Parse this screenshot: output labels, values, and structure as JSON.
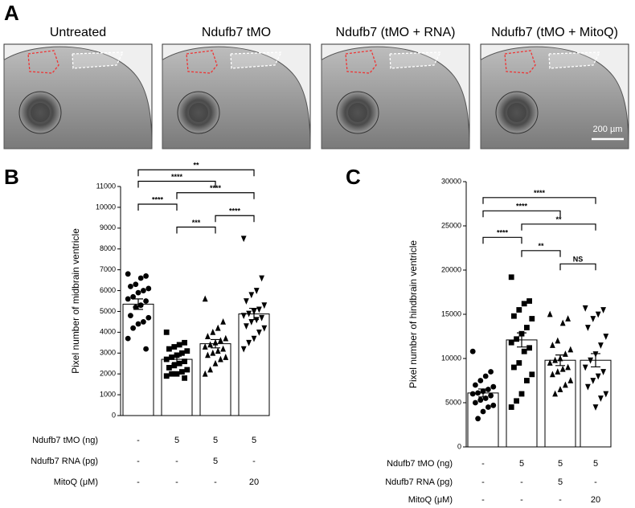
{
  "figure": {
    "label": "A",
    "titles": [
      "Untreated",
      "Ndufb7 tMO",
      "Ndufb7 (tMO + RNA)",
      "Ndufb7 (tMO + MitoQ)"
    ],
    "scale_bar": "200 µm"
  },
  "chart_data": [
    {
      "type": "bar",
      "label": "B",
      "ylabel": "Pixel number of midbrain ventricle",
      "ylim": [
        0,
        11000
      ],
      "yticks": [
        0,
        1000,
        2000,
        3000,
        4000,
        5000,
        6000,
        7000,
        8000,
        9000,
        10000,
        11000
      ],
      "values": [
        5350,
        2700,
        3450,
        4880
      ],
      "errors": [
        250,
        150,
        200,
        270
      ],
      "color": "#ffffff",
      "markers": [
        "circle",
        "square",
        "triangle",
        "triangle-down"
      ],
      "points": [
        [
          6800,
          6700,
          6600,
          6300,
          6200,
          6100,
          6000,
          5900,
          5700,
          5600,
          5500,
          5300,
          5200,
          4800,
          4700,
          4500,
          4400,
          4200,
          3700,
          3200
        ],
        [
          4000,
          3500,
          3400,
          3300,
          3200,
          3100,
          3000,
          2900,
          2800,
          2700,
          2600,
          2500,
          2400,
          2300,
          2200,
          2100,
          2000,
          2000,
          1900,
          1800
        ],
        [
          5600,
          4500,
          4200,
          4000,
          3800,
          3700,
          3600,
          3500,
          3400,
          3300,
          3200,
          3100,
          3000,
          2900,
          2800,
          2700,
          2500,
          2200,
          2000
        ],
        [
          8500,
          6600,
          6000,
          5800,
          5500,
          5300,
          5100,
          5000,
          4900,
          4800,
          4700,
          4600,
          4500,
          4300,
          4200,
          4000,
          3700,
          3500,
          3200
        ]
      ],
      "conditions": [
        {
          "label": "Ndufb7 tMO (ng)",
          "values": [
            "-",
            "5",
            "5",
            "5"
          ]
        },
        {
          "label": "Ndufb7 RNA (pg)",
          "values": [
            "-",
            "-",
            "5",
            "-"
          ]
        },
        {
          "label": "MitoQ (μM)",
          "values": [
            "-",
            "-",
            "-",
            "20"
          ]
        }
      ],
      "comparisons": [
        {
          "groups": [
            1,
            2
          ],
          "label": "***"
        },
        {
          "groups": [
            2,
            3
          ],
          "label": "****"
        },
        {
          "groups": [
            0,
            1
          ],
          "label": "****"
        },
        {
          "groups": [
            1,
            3
          ],
          "label": "****"
        },
        {
          "groups": [
            0,
            2
          ],
          "label": "****"
        },
        {
          "groups": [
            0,
            3
          ],
          "label": "**"
        }
      ]
    },
    {
      "type": "bar",
      "label": "C",
      "ylabel": "Pixel number of hindbrain ventricle",
      "ylim": [
        0,
        30000
      ],
      "yticks": [
        0,
        5000,
        10000,
        15000,
        20000,
        25000,
        30000
      ],
      "values": [
        6100,
        12100,
        9800,
        9800
      ],
      "errors": [
        450,
        800,
        600,
        750
      ],
      "color": "#ffffff",
      "markers": [
        "circle",
        "square",
        "triangle",
        "triangle-down"
      ],
      "points": [
        [
          10800,
          8500,
          8000,
          7500,
          7000,
          6800,
          6500,
          6300,
          6100,
          6000,
          5800,
          5500,
          5300,
          5000,
          4700,
          4500,
          4000,
          3200
        ],
        [
          19200,
          16500,
          16200,
          15500,
          14800,
          14500,
          13500,
          12800,
          12200,
          11800,
          11200,
          10800,
          9500,
          9000,
          8200,
          7500,
          6000,
          5200,
          4500
        ],
        [
          15000,
          14500,
          14000,
          12000,
          11500,
          11000,
          10500,
          10000,
          9800,
          9500,
          9000,
          8800,
          8500,
          8200,
          7500,
          7000,
          6500,
          6000
        ],
        [
          15700,
          15500,
          15000,
          14500,
          13500,
          12500,
          11500,
          10500,
          9800,
          9000,
          8500,
          8000,
          7500,
          6800,
          6000,
          5500,
          4500
        ]
      ],
      "conditions": [
        {
          "label": "Ndufb7 tMO (ng)",
          "values": [
            "-",
            "5",
            "5",
            "5"
          ]
        },
        {
          "label": "Ndufb7 RNA (pg)",
          "values": [
            "-",
            "-",
            "5",
            "-"
          ]
        },
        {
          "label": "MitoQ (μM)",
          "values": [
            "-",
            "-",
            "-",
            "20"
          ]
        }
      ],
      "comparisons": [
        {
          "groups": [
            2,
            3
          ],
          "label": "NS"
        },
        {
          "groups": [
            1,
            2
          ],
          "label": "**"
        },
        {
          "groups": [
            0,
            1
          ],
          "label": "****"
        },
        {
          "groups": [
            1,
            3
          ],
          "label": "**"
        },
        {
          "groups": [
            0,
            2
          ],
          "label": "****"
        },
        {
          "groups": [
            0,
            3
          ],
          "label": "****"
        }
      ]
    }
  ]
}
